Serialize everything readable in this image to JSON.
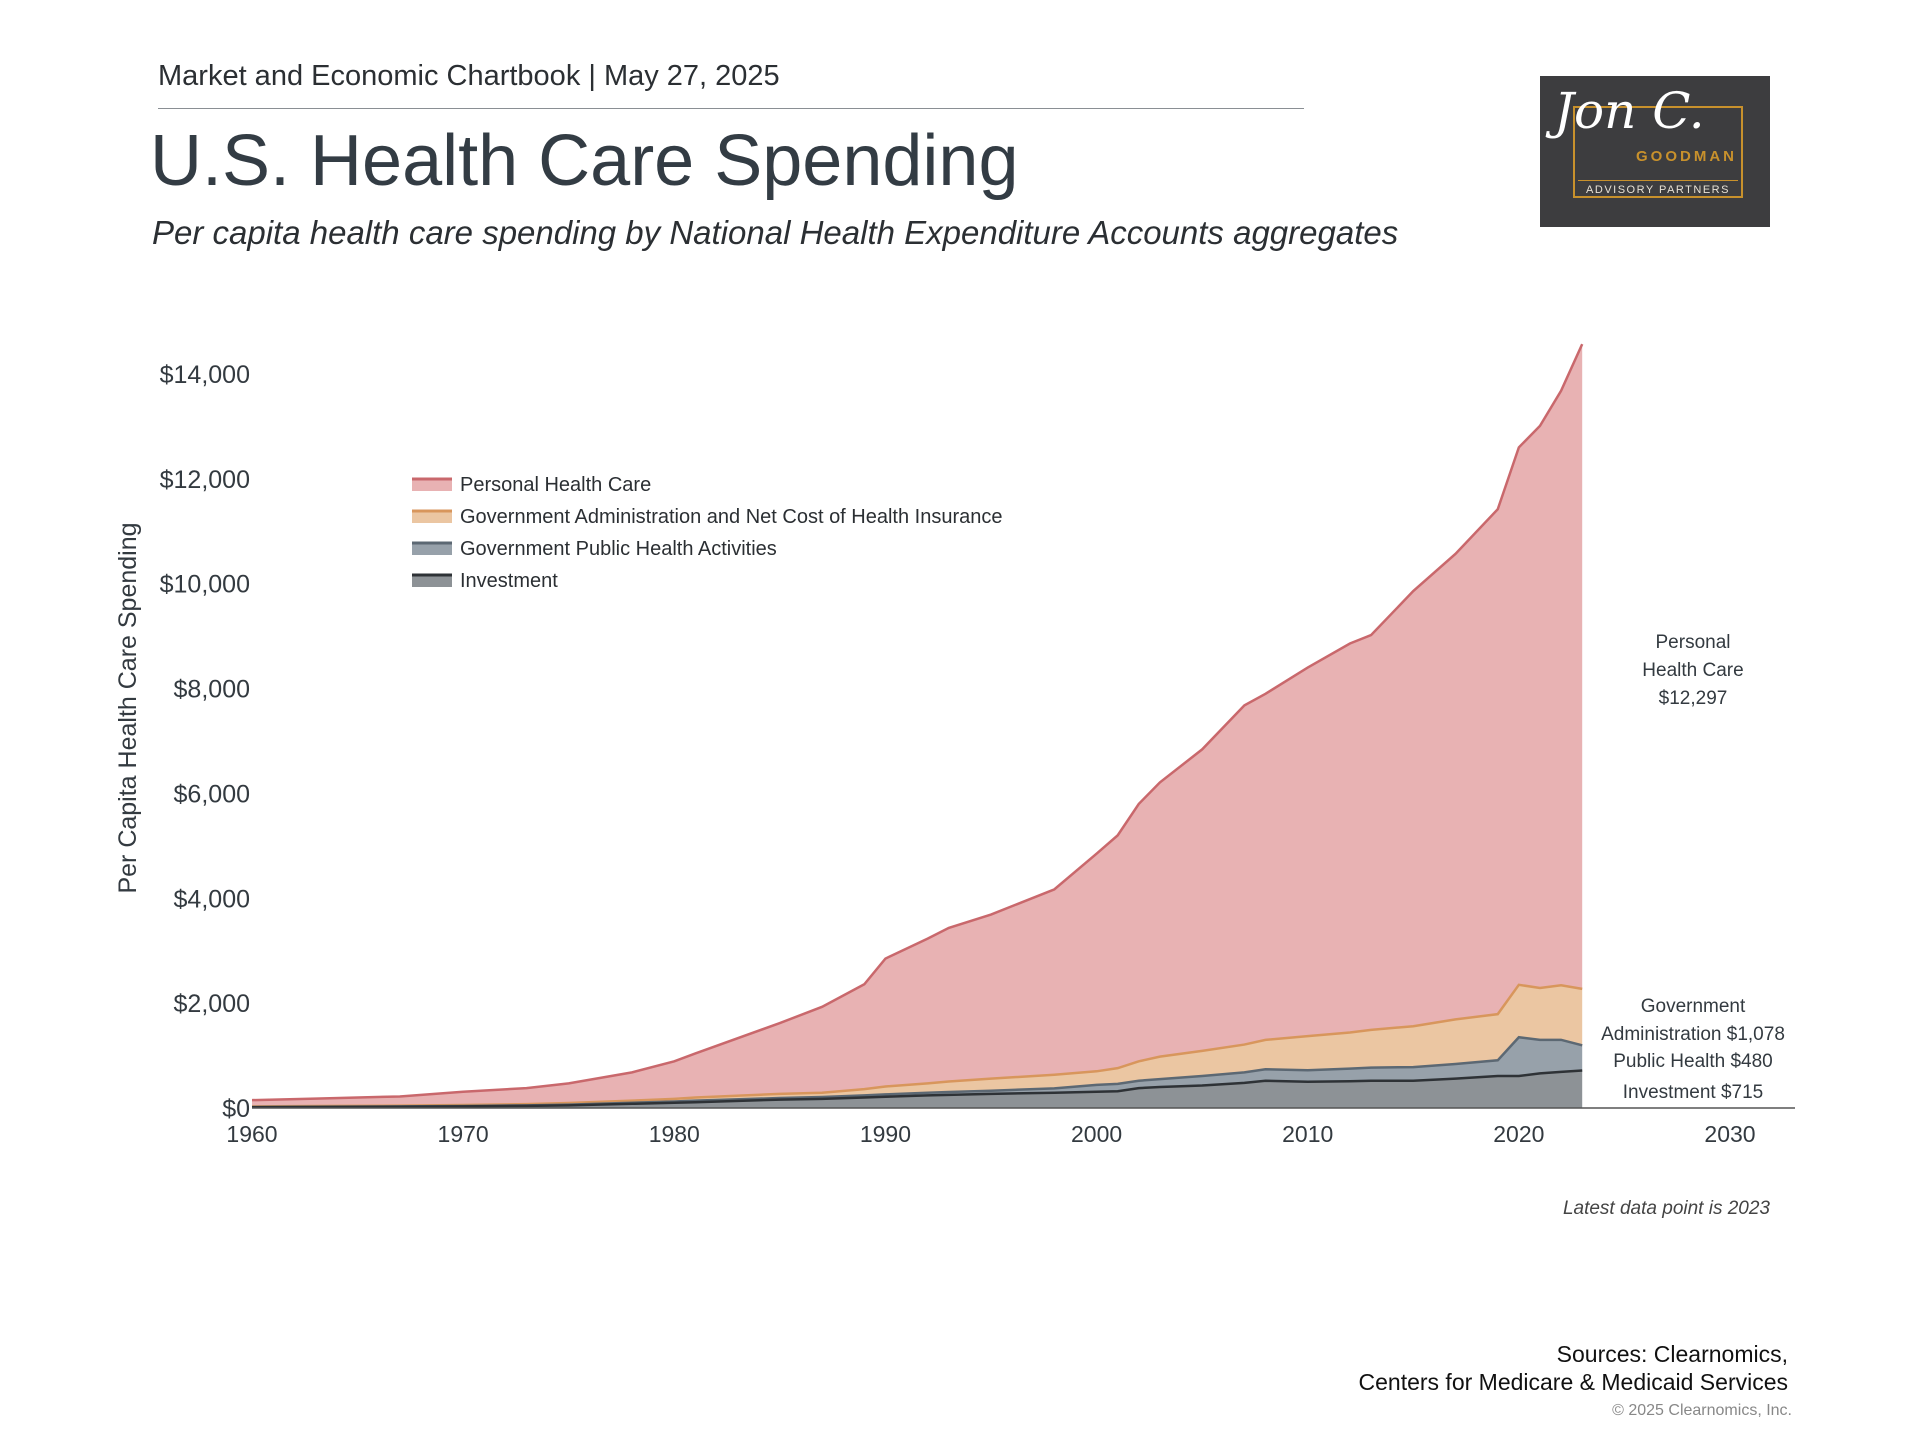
{
  "header": {
    "chartbook": "Market and Economic Chartbook | May 27, 2025",
    "title": "U.S. Health Care Spending",
    "subtitle": "Per capita health care spending by National Health Expenditure Accounts aggregates"
  },
  "logo": {
    "signature": "Jon C.",
    "name": "GOODMAN",
    "sub": "ADVISORY PARTNERS"
  },
  "colors": {
    "personal_fill": "#e8b2b3",
    "personal_line": "#c9686c",
    "admin_fill": "#ebc6a2",
    "admin_line": "#d8965c",
    "public_fill": "#97a1aa",
    "public_line": "#5c6873",
    "invest_fill": "#8d9296",
    "invest_line": "#2e3236"
  },
  "chart_data": {
    "type": "area",
    "stacked": true,
    "ylabel": "Per Capita Health Care Spending",
    "ylim": [
      0,
      14500
    ],
    "xlim": [
      1960,
      2033
    ],
    "yticks": [
      0,
      2000,
      4000,
      6000,
      8000,
      10000,
      12000,
      14000
    ],
    "ytick_labels": [
      "$0",
      "$2,000",
      "$4,000",
      "$6,000",
      "$8,000",
      "$10,000",
      "$12,000",
      "$14,000"
    ],
    "xticks": [
      1960,
      1970,
      1980,
      1990,
      2000,
      2010,
      2020,
      2030
    ],
    "xtick_labels": [
      "1960",
      "1970",
      "1980",
      "1990",
      "2000",
      "2010",
      "2020",
      "2030"
    ],
    "legend_position": "top-left",
    "x": [
      1960,
      1963,
      1967,
      1970,
      1973,
      1975,
      1978,
      1980,
      1981,
      1985,
      1987,
      1989,
      1990,
      1992,
      1993,
      1995,
      1998,
      2000,
      2001,
      2002,
      2003,
      2005,
      2007,
      2008,
      2010,
      2012,
      2013,
      2015,
      2017,
      2019,
      2020,
      2021,
      2022,
      2023
    ],
    "series": [
      {
        "name": "Investment",
        "values": [
          15,
          20,
          25,
          30,
          40,
          50,
          80,
          100,
          110,
          160,
          175,
          200,
          215,
          240,
          250,
          270,
          290,
          310,
          320,
          380,
          400,
          430,
          480,
          520,
          500,
          510,
          520,
          520,
          560,
          610,
          610,
          660,
          690,
          715
        ]
      },
      {
        "name": "Government Public Health Activities",
        "values": [
          5,
          5,
          6,
          8,
          10,
          15,
          20,
          25,
          30,
          30,
          35,
          40,
          45,
          50,
          55,
          60,
          85,
          130,
          140,
          140,
          150,
          180,
          200,
          220,
          220,
          240,
          250,
          260,
          280,
          300,
          740,
          640,
          610,
          480
        ]
      },
      {
        "name": "Government Administration and Net Cost of Health Insurance",
        "values": [
          10,
          12,
          15,
          20,
          25,
          30,
          40,
          50,
          60,
          80,
          80,
          120,
          150,
          180,
          200,
          230,
          260,
          260,
          300,
          370,
          430,
          480,
          530,
          560,
          650,
          690,
          720,
          780,
          850,
          880,
          1000,
          990,
          1040,
          1078
        ]
      },
      {
        "name": "Personal Health Care",
        "values": [
          120,
          143,
          174,
          252,
          305,
          375,
          540,
          715,
          840,
          1350,
          1640,
          2000,
          2440,
          2760,
          2930,
          3130,
          3535,
          4150,
          4440,
          4910,
          5230,
          5750,
          6470,
          6600,
          7030,
          7420,
          7530,
          8300,
          8880,
          9630,
          10250,
          10720,
          11340,
          12297
        ]
      }
    ],
    "end_labels": [
      {
        "lines": [
          "Personal",
          "Health Care",
          "$12,297"
        ]
      },
      {
        "lines": [
          "Government",
          "Administration $1,078"
        ]
      },
      {
        "lines": [
          "Public Health $480"
        ]
      },
      {
        "lines": [
          "Investment $715"
        ]
      }
    ]
  },
  "footer": {
    "note": "Latest data point is 2023",
    "sources_line1": "Sources: Clearnomics,",
    "sources_line2": "Centers for Medicare & Medicaid Services",
    "copyright": "© 2025 Clearnomics, Inc."
  }
}
